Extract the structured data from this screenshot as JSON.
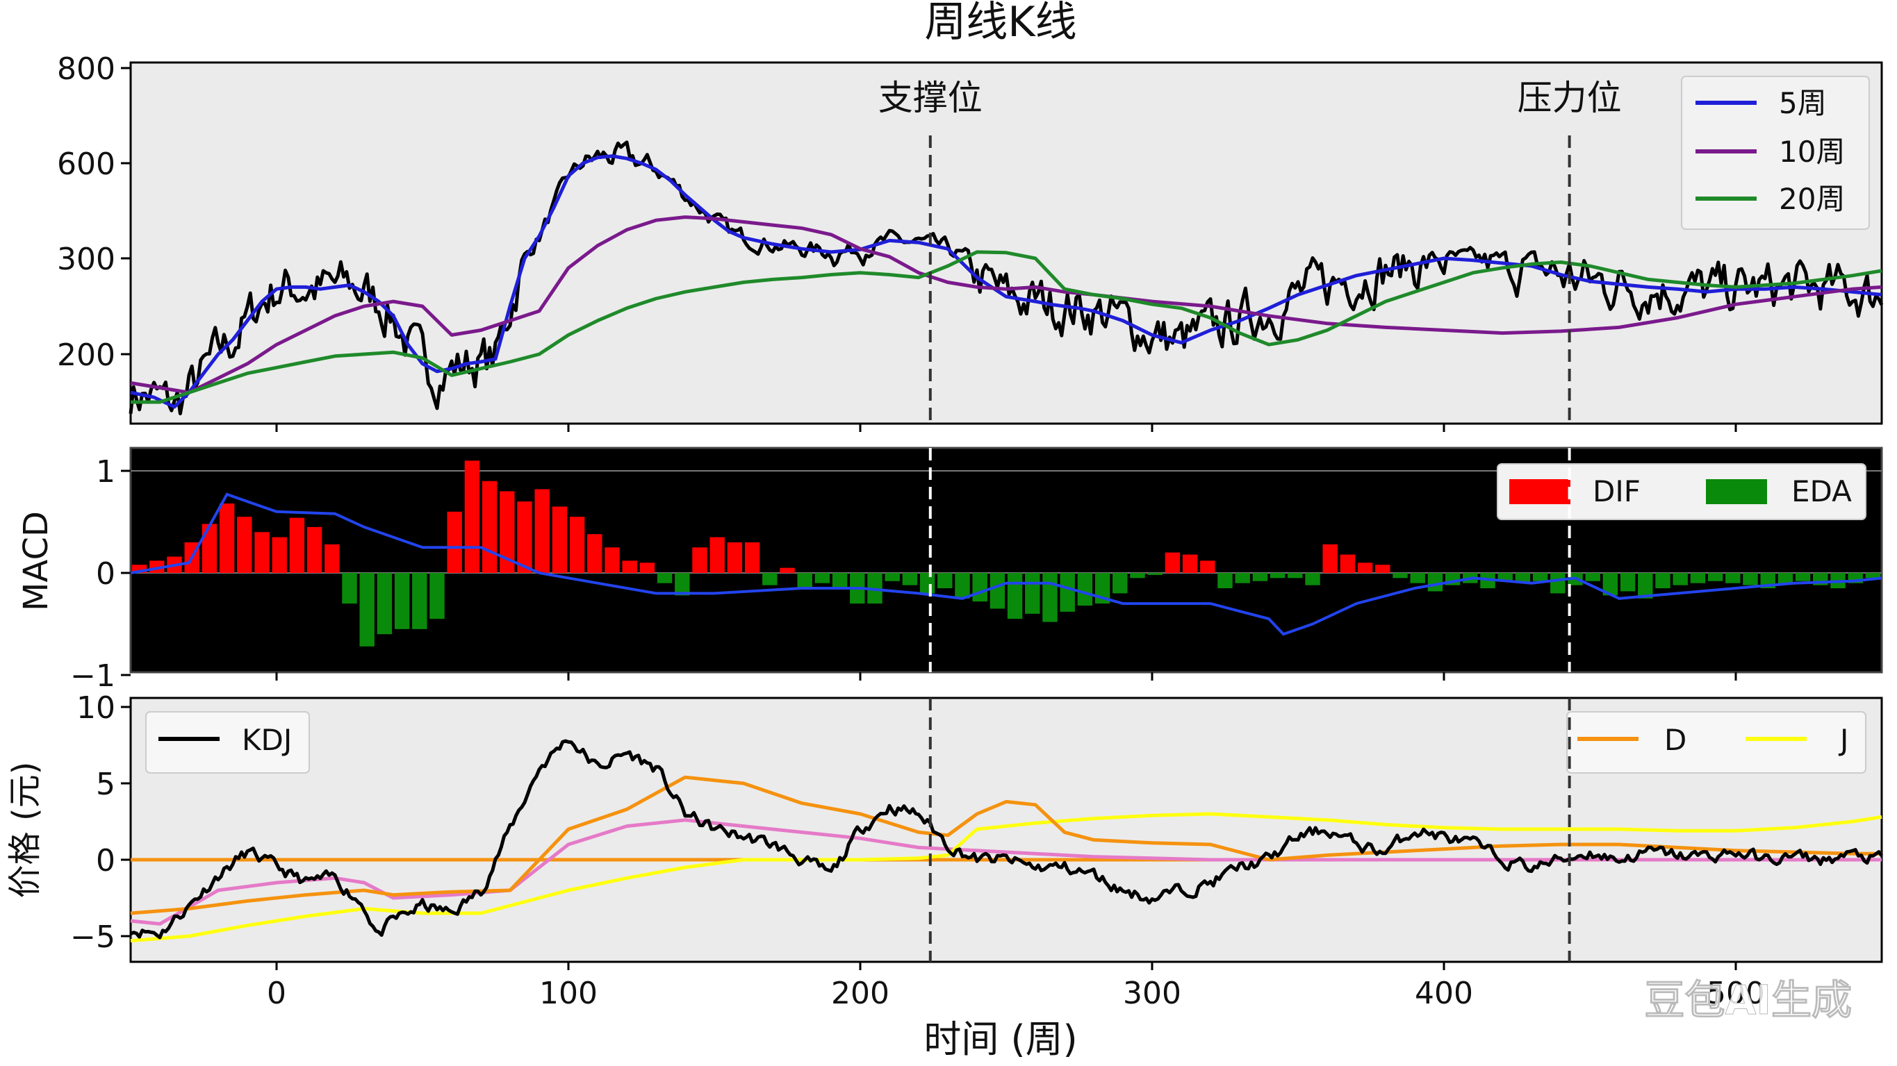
{
  "title": "周线K线",
  "xlabel": "时间 (周)",
  "watermark": "豆包AI生成",
  "colors": {
    "panel_bg": "#ebebeb",
    "macd_bg": "#000000",
    "price": "#000000",
    "ma5": "#1f1fd8",
    "ma10": "#7a1a8c",
    "ma20": "#1f8a2a",
    "dif_bar": "#ff0000",
    "eda_bar": "#0a8a0a",
    "macd_line": "#2244ee",
    "kdj": "#000000",
    "d_line": "#f5920f",
    "j_line": "#ffff10",
    "k_line": "#e57ac8"
  },
  "chart_data": [
    {
      "type": "line",
      "panel": "price",
      "title": "周线K线",
      "x_ticks": [
        0,
        100,
        200,
        300,
        400,
        500
      ],
      "xlim": [
        -50,
        550
      ],
      "y_ticks": [
        200,
        300,
        600,
        800
      ],
      "y_tick_labels": [
        "200",
        "300",
        "600",
        "800"
      ],
      "annotations": [
        {
          "label": "支撑位",
          "x": 224
        },
        {
          "label": "压力位",
          "x": 443
        }
      ],
      "legend": {
        "placement": "top-right",
        "entries": [
          "5周",
          "10周",
          "20周"
        ]
      },
      "series": [
        {
          "name": "5周",
          "color_key": "ma5",
          "x": [
            -50,
            -42,
            -35,
            -30,
            -20,
            -15,
            -10,
            -5,
            0,
            5,
            10,
            15,
            20,
            25,
            30,
            35,
            40,
            45,
            50,
            55,
            60,
            65,
            70,
            75,
            80,
            85,
            90,
            95,
            100,
            105,
            110,
            115,
            120,
            125,
            130,
            135,
            140,
            145,
            150,
            155,
            160,
            170,
            180,
            190,
            200,
            210,
            220,
            230,
            240,
            250,
            260,
            265,
            270,
            275,
            280,
            290,
            300,
            310,
            320,
            330,
            340,
            350,
            360,
            370,
            380,
            390,
            400,
            410,
            420,
            430,
            440,
            450,
            460,
            470,
            480,
            490,
            500,
            510,
            520,
            530,
            540,
            550
          ],
          "y": [
            160,
            155,
            145,
            160,
            200,
            215,
            235,
            255,
            268,
            270,
            270,
            268,
            270,
            272,
            265,
            255,
            240,
            210,
            190,
            182,
            185,
            190,
            192,
            195,
            250,
            300,
            370,
            460,
            560,
            600,
            612,
            615,
            610,
            600,
            580,
            545,
            500,
            460,
            420,
            385,
            365,
            345,
            330,
            320,
            328,
            356,
            350,
            330,
            280,
            260,
            255,
            252,
            250,
            248,
            245,
            235,
            220,
            212,
            225,
            235,
            248,
            262,
            272,
            282,
            288,
            294,
            300,
            298,
            295,
            292,
            283,
            276,
            273,
            270,
            268,
            265,
            268,
            268,
            270,
            268,
            265,
            262
          ]
        },
        {
          "name": "10周",
          "color_key": "ma10",
          "x": [
            -50,
            -30,
            -10,
            0,
            10,
            20,
            30,
            40,
            50,
            60,
            70,
            80,
            90,
            100,
            110,
            120,
            130,
            140,
            150,
            160,
            170,
            180,
            190,
            200,
            210,
            220,
            230,
            240,
            250,
            260,
            270,
            280,
            300,
            320,
            340,
            360,
            380,
            400,
            420,
            440,
            460,
            480,
            500,
            520,
            540,
            550
          ],
          "y": [
            170,
            160,
            190,
            210,
            225,
            240,
            250,
            255,
            250,
            220,
            225,
            235,
            245,
            290,
            340,
            390,
            420,
            430,
            425,
            415,
            405,
            395,
            375,
            330,
            305,
            285,
            275,
            270,
            268,
            270,
            265,
            262,
            255,
            250,
            240,
            232,
            228,
            225,
            222,
            224,
            228,
            238,
            252,
            260,
            268,
            270
          ]
        },
        {
          "name": "20周",
          "color_key": "ma20",
          "x": [
            -50,
            -40,
            -30,
            -20,
            -10,
            0,
            10,
            20,
            30,
            40,
            50,
            60,
            70,
            80,
            90,
            100,
            110,
            120,
            130,
            140,
            150,
            160,
            170,
            180,
            190,
            200,
            210,
            220,
            230,
            240,
            250,
            260,
            270,
            280,
            290,
            300,
            310,
            320,
            330,
            340,
            350,
            360,
            370,
            380,
            390,
            400,
            410,
            420,
            430,
            440,
            450,
            460,
            470,
            480,
            490,
            500,
            510,
            520,
            530,
            540,
            550
          ],
          "y": [
            150,
            150,
            160,
            170,
            180,
            186,
            192,
            198,
            200,
            202,
            196,
            178,
            185,
            192,
            200,
            220,
            235,
            248,
            258,
            265,
            270,
            275,
            278,
            280,
            283,
            285,
            283,
            280,
            292,
            320,
            318,
            300,
            268,
            262,
            258,
            252,
            248,
            238,
            222,
            210,
            215,
            225,
            240,
            255,
            265,
            275,
            285,
            290,
            294,
            296,
            292,
            285,
            278,
            275,
            272,
            270,
            272,
            274,
            278,
            282,
            287
          ]
        },
        {
          "name": "",
          "color_key": "price",
          "kind": "noisy",
          "anchors_from": "5周",
          "amplitude": 22,
          "seed": 7
        }
      ]
    },
    {
      "type": "bar",
      "panel": "macd",
      "ylabel": "MACD",
      "ylim": [
        -1,
        1.2
      ],
      "y_ticks": [
        1,
        0,
        -1
      ],
      "y_tick_labels": [
        "1",
        "0",
        "−1"
      ],
      "legend": {
        "placement": "top-right",
        "entries": [
          "DIF",
          "EDA"
        ]
      },
      "bars_x": [
        -47,
        -41,
        -35,
        -29,
        -23,
        -17,
        -11,
        -5,
        1,
        7,
        13,
        19,
        25,
        31,
        37,
        43,
        49,
        55,
        61,
        67,
        73,
        79,
        85,
        91,
        97,
        103,
        109,
        115,
        121,
        127,
        133,
        139,
        145,
        151,
        157,
        163,
        169,
        175,
        181,
        187,
        193,
        199,
        205,
        211,
        217,
        223,
        229,
        235,
        241,
        247,
        253,
        259,
        265,
        271,
        277,
        283,
        289,
        295,
        301,
        307,
        313,
        319,
        325,
        331,
        337,
        343,
        349,
        355,
        361,
        367,
        373,
        379,
        385,
        391,
        397,
        403,
        409,
        415,
        421,
        427,
        433,
        439,
        445,
        451,
        457,
        463,
        469,
        475,
        481,
        487,
        493,
        499,
        505,
        511,
        517,
        523,
        529,
        535,
        541,
        547
      ],
      "bars_y": [
        0.08,
        0.12,
        0.16,
        0.3,
        0.48,
        0.68,
        0.55,
        0.4,
        0.35,
        0.54,
        0.45,
        0.28,
        -0.3,
        -0.72,
        -0.6,
        -0.55,
        -0.55,
        -0.45,
        0.6,
        1.1,
        0.9,
        0.8,
        0.7,
        0.82,
        0.65,
        0.55,
        0.38,
        0.25,
        0.12,
        0.1,
        -0.1,
        -0.22,
        0.25,
        0.35,
        0.3,
        0.3,
        -0.12,
        0.05,
        -0.15,
        -0.1,
        -0.15,
        -0.3,
        -0.3,
        -0.08,
        -0.12,
        -0.2,
        -0.15,
        -0.25,
        -0.28,
        -0.35,
        -0.45,
        -0.4,
        -0.48,
        -0.38,
        -0.32,
        -0.3,
        -0.2,
        -0.05,
        -0.02,
        0.2,
        0.18,
        0.12,
        -0.15,
        -0.1,
        -0.08,
        -0.05,
        -0.05,
        -0.12,
        0.28,
        0.18,
        0.1,
        0.08,
        -0.05,
        -0.1,
        -0.18,
        -0.12,
        -0.1,
        -0.15,
        -0.08,
        -0.1,
        -0.08,
        -0.2,
        -0.12,
        -0.08,
        -0.22,
        -0.18,
        -0.25,
        -0.15,
        -0.12,
        -0.1,
        -0.08,
        -0.1,
        -0.12,
        -0.15,
        -0.1,
        -0.08,
        -0.12,
        -0.15,
        -0.1,
        -0.05
      ],
      "line": {
        "x": [
          -50,
          -30,
          -17,
          0,
          20,
          30,
          50,
          70,
          90,
          110,
          130,
          150,
          180,
          200,
          220,
          235,
          250,
          265,
          290,
          320,
          340,
          345,
          355,
          370,
          390,
          410,
          430,
          445,
          460,
          480,
          500,
          520,
          540,
          550
        ],
        "y": [
          0,
          0.1,
          0.77,
          0.6,
          0.58,
          0.45,
          0.25,
          0.25,
          0.0,
          -0.1,
          -0.2,
          -0.2,
          -0.15,
          -0.15,
          -0.2,
          -0.25,
          -0.1,
          -0.1,
          -0.3,
          -0.3,
          -0.45,
          -0.6,
          -0.5,
          -0.3,
          -0.15,
          -0.05,
          -0.1,
          -0.05,
          -0.25,
          -0.2,
          -0.15,
          -0.1,
          -0.08,
          -0.05
        ]
      }
    },
    {
      "type": "line",
      "panel": "kdj",
      "ylabel": "价格 (元)",
      "ylim": [
        -6.5,
        10.5
      ],
      "y_ticks": [
        10,
        5,
        0,
        -5
      ],
      "y_tick_labels": [
        "10",
        "5",
        "0",
        "−5"
      ],
      "xlabel": "时间 (周)",
      "x_ticks": [
        0,
        100,
        200,
        300,
        400,
        500
      ],
      "x_tick_labels": [
        "0",
        "100",
        "200",
        "300",
        "400",
        "500"
      ],
      "legend_left": {
        "placement": "top-left",
        "entries": [
          "KDJ"
        ]
      },
      "legend_right": {
        "placement": "top-right",
        "entries": [
          "D",
          "J"
        ]
      },
      "series": [
        {
          "name": "KDJ",
          "color_key": "kdj",
          "x": [
            -50,
            -40,
            -30,
            -20,
            -10,
            0,
            10,
            20,
            30,
            35,
            40,
            50,
            60,
            70,
            80,
            90,
            100,
            110,
            120,
            130,
            140,
            150,
            160,
            170,
            180,
            190,
            200,
            210,
            220,
            230,
            240,
            250,
            260,
            270,
            280,
            290,
            300,
            310,
            320,
            330,
            340,
            350,
            360,
            370,
            380,
            390,
            400,
            410,
            420,
            430,
            440,
            450,
            460,
            470,
            480,
            490,
            500,
            510,
            520,
            530,
            540,
            550
          ],
          "y": [
            -4.5,
            -4.8,
            -3,
            -1,
            0.5,
            -0.5,
            -1.5,
            -1.2,
            -3,
            -5,
            -4,
            -3,
            -3.5,
            -2,
            2,
            6,
            8,
            6,
            7,
            6,
            3,
            2,
            1.5,
            1,
            0,
            -1,
            2,
            3.5,
            3,
            1,
            0,
            0,
            -0.5,
            -0.5,
            -1,
            -2,
            -2.5,
            -2,
            -1.5,
            -0.5,
            0,
            1.5,
            2,
            1,
            0.5,
            2,
            1.5,
            1,
            0,
            -0.5,
            0,
            0.5,
            0,
            0.5,
            0.3,
            0.2,
            0.5,
            0,
            0.2,
            0,
            0.3,
            0
          ],
          "kind": "noisy",
          "amplitude": 0.35,
          "seed": 11
        },
        {
          "name": "D",
          "color_key": "d_line",
          "x": [
            -50,
            -30,
            -10,
            10,
            30,
            40,
            60,
            80,
            100,
            120,
            140,
            160,
            180,
            200,
            220,
            230,
            240,
            250,
            260,
            270,
            280,
            300,
            320,
            340,
            360,
            380,
            400,
            420,
            440,
            460,
            480,
            500,
            520,
            540,
            550
          ],
          "y": [
            -3.5,
            -3.2,
            -2.7,
            -2.3,
            -2.0,
            -2.3,
            -2.1,
            -2,
            2,
            3.3,
            5.4,
            5,
            3.7,
            3,
            1.8,
            1.6,
            3,
            3.8,
            3.6,
            1.8,
            1.3,
            1.1,
            1.0,
            0,
            0.3,
            0.5,
            0.7,
            0.9,
            1.0,
            1.0,
            0.8,
            0.6,
            0.5,
            0.4,
            0.4
          ]
        },
        {
          "name": "J",
          "color_key": "j_line",
          "x": [
            -50,
            -30,
            -10,
            10,
            30,
            50,
            70,
            100,
            120,
            140,
            160,
            180,
            200,
            220,
            230,
            240,
            260,
            280,
            300,
            320,
            340,
            360,
            380,
            400,
            420,
            440,
            460,
            480,
            500,
            520,
            540,
            550
          ],
          "y": [
            -5.3,
            -5,
            -4.3,
            -3.7,
            -3.2,
            -3.5,
            -3.5,
            -2.0,
            -1.2,
            -0.5,
            0,
            0,
            0,
            0.1,
            0.3,
            2,
            2.4,
            2.7,
            2.9,
            3.0,
            2.8,
            2.6,
            2.3,
            2.1,
            2.0,
            2.0,
            2.0,
            1.9,
            1.9,
            2.1,
            2.5,
            2.8
          ]
        },
        {
          "name": "",
          "color_key": "k_line",
          "x": [
            -50,
            -40,
            -20,
            0,
            20,
            30,
            40,
            60,
            80,
            100,
            120,
            140,
            160,
            180,
            200,
            220,
            240,
            260,
            280,
            300,
            320,
            340,
            360,
            380,
            400,
            420,
            440,
            460,
            480,
            500,
            520,
            540,
            550
          ],
          "y": [
            -4,
            -4.2,
            -2,
            -1.5,
            -1.2,
            -1.5,
            -2.5,
            -2.3,
            -2,
            1,
            2.2,
            2.6,
            2.2,
            1.8,
            1.4,
            0.8,
            0.6,
            0.4,
            0.2,
            0.1,
            0,
            0,
            0,
            0,
            0,
            0,
            0,
            0,
            0,
            0,
            0,
            0,
            0
          ]
        },
        {
          "name": "",
          "color_key": "d_line",
          "kind": "flat",
          "x": [
            -50,
            550
          ],
          "y": [
            0,
            0
          ]
        }
      ]
    }
  ]
}
